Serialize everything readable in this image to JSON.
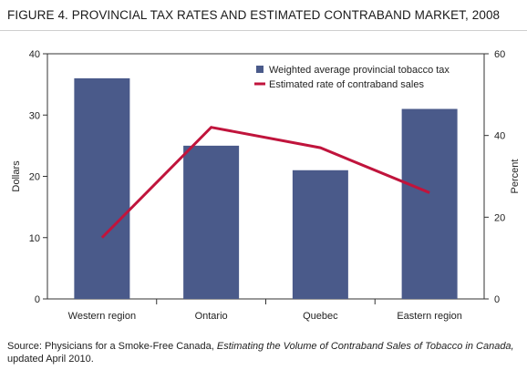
{
  "figure": {
    "title": "FIGURE 4. PROVINCIAL TAX RATES AND ESTIMATED CONTRABAND MARKET, 2008",
    "source_prefix": "Source: Physicians for a Smoke-Free Canada, ",
    "source_italic": "Estimating the Volume of Contraband Sales of Tobacco in Canada,",
    "source_suffix": " updated April 2010."
  },
  "chart_data": {
    "type": "bar",
    "categories": [
      "Western region",
      "Ontario",
      "Quebec",
      "Eastern region"
    ],
    "series": [
      {
        "name": "Weighted average provincial tobacco tax",
        "type": "bar",
        "axis": "left",
        "color": "#4a5a8a",
        "values": [
          36,
          25,
          21,
          31
        ]
      },
      {
        "name": "Estimated rate of contraband sales",
        "type": "line",
        "axis": "right",
        "color": "#c0143c",
        "values": [
          15,
          42,
          37,
          26
        ]
      }
    ],
    "ylabel": "Dollars",
    "y2label": "Percent",
    "ylim": [
      0,
      40
    ],
    "y2lim": [
      0,
      60
    ],
    "yticks": [
      0,
      10,
      20,
      30,
      40
    ],
    "y2ticks": [
      0,
      20,
      40,
      60
    ],
    "grid": false,
    "legend": "top-right"
  }
}
